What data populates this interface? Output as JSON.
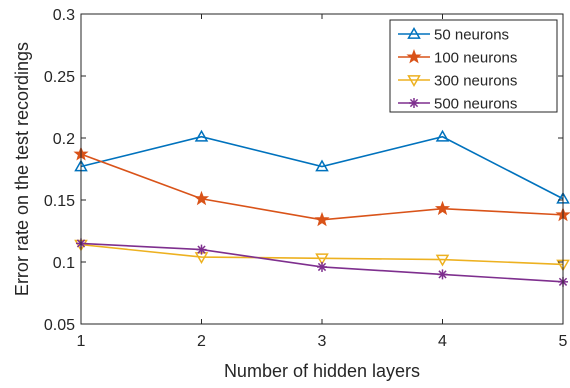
{
  "chart_data": {
    "type": "line",
    "title": "",
    "xlabel": "Number of hidden layers",
    "ylabel": "Error rate on the test recordings",
    "x": [
      1,
      2,
      3,
      4,
      5
    ],
    "xlim": [
      1,
      5
    ],
    "ylim": [
      0.05,
      0.3
    ],
    "xticks": [
      "1",
      "2",
      "3",
      "4",
      "5"
    ],
    "yticks": [
      "0.05",
      "0.1",
      "0.15",
      "0.2",
      "0.25",
      "0.3"
    ],
    "grid": false,
    "legend_position": "top-right",
    "series": [
      {
        "name": "50 neurons",
        "values": [
          0.177,
          0.201,
          0.177,
          0.201,
          0.151
        ],
        "color": "#0072BD",
        "marker": "triangle-up"
      },
      {
        "name": "100 neurons",
        "values": [
          0.187,
          0.151,
          0.134,
          0.143,
          0.138
        ],
        "color": "#D95319",
        "marker": "star"
      },
      {
        "name": "300 neurons",
        "values": [
          0.114,
          0.104,
          0.103,
          0.102,
          0.098
        ],
        "color": "#EDB120",
        "marker": "triangle-down"
      },
      {
        "name": "500 neurons",
        "values": [
          0.115,
          0.11,
          0.096,
          0.09,
          0.084
        ],
        "color": "#7E2F8E",
        "marker": "asterisk"
      }
    ]
  }
}
